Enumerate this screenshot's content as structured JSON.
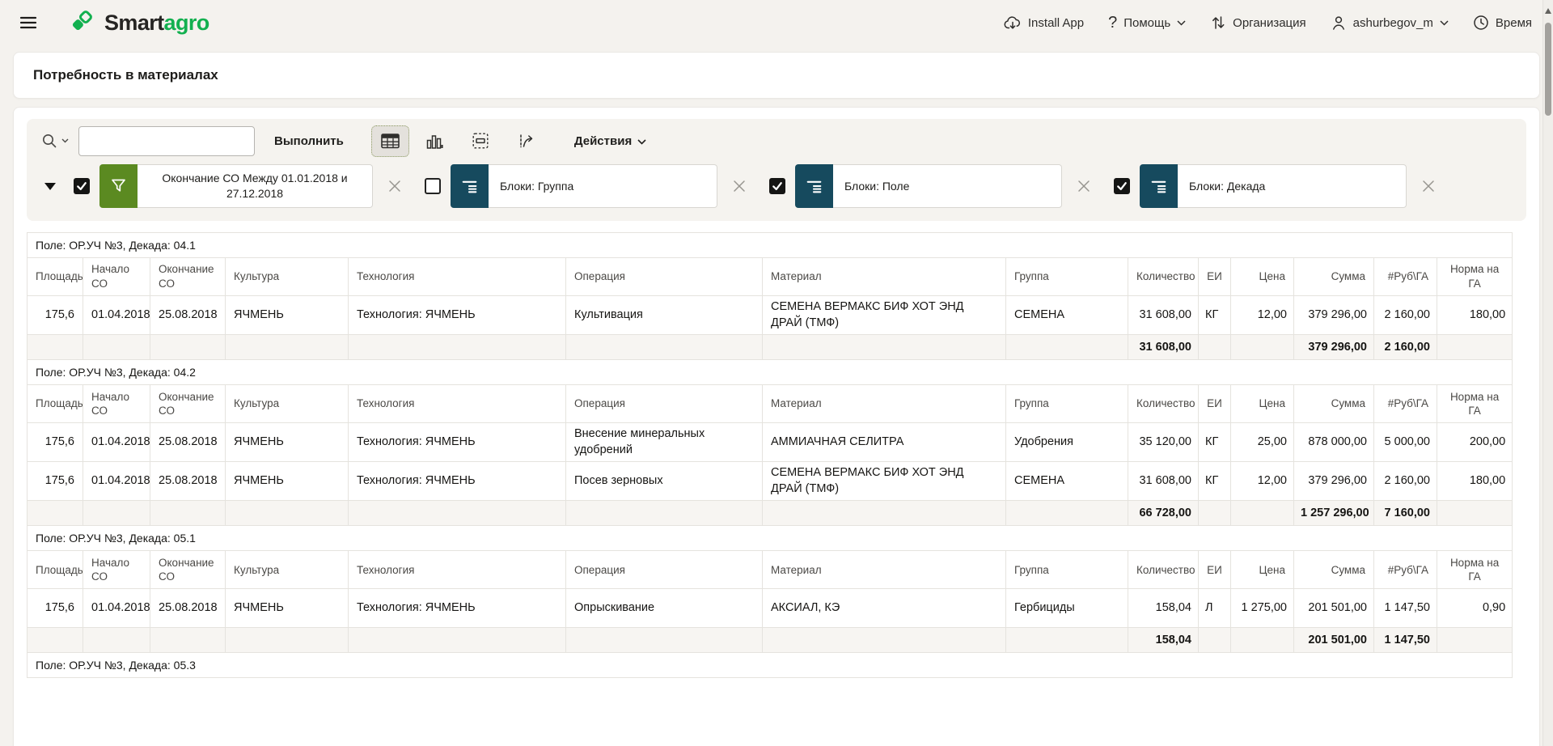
{
  "topbar": {
    "brand": {
      "smart": "Smart",
      "agro": "agro"
    },
    "nav": [
      {
        "label": "Install App",
        "icon": "cloud-download-icon",
        "chevron": false
      },
      {
        "label": "Помощь",
        "icon": "question-icon",
        "chevron": true
      },
      {
        "label": "Организация",
        "icon": "swap-arrows-icon",
        "chevron": false
      },
      {
        "label": "ashurbegov_m",
        "icon": "user-icon",
        "chevron": true
      },
      {
        "label": "Время",
        "icon": "clock-icon",
        "chevron": false
      }
    ]
  },
  "page": {
    "title": "Потребность в материалах"
  },
  "toolbar": {
    "search_value": "",
    "execute_label": "Выполнить",
    "actions_label": "Действия",
    "view_icons": [
      "table-view-icon",
      "chart-view-icon",
      "single-record-view-icon",
      "flashback-view-icon"
    ],
    "selected_view": "table-view-icon"
  },
  "filters": {
    "items": [
      {
        "checked": true,
        "type": "filter",
        "label": "Окончание СО Между 01.01.2018 и 27.12.2018"
      },
      {
        "checked": false,
        "type": "break",
        "label": "Блоки: Группа"
      },
      {
        "checked": true,
        "type": "break",
        "label": "Блоки: Поле"
      },
      {
        "checked": true,
        "type": "break",
        "label": "Блоки: Декада"
      }
    ]
  },
  "table": {
    "columns": [
      "Площадь",
      "Начало СО",
      "Окончание СО",
      "Культура",
      "Технология",
      "Операция",
      "Материал",
      "Группа",
      "Количество",
      "ЕИ",
      "Цена",
      "Сумма",
      "#Руб\\ГА",
      "Норма на ГА"
    ],
    "groups": [
      {
        "label": "Поле: ОР.УЧ №3, Декада: 04.1",
        "rows": [
          [
            "175,6",
            "01.04.2018",
            "25.08.2018",
            "ЯЧМЕНЬ",
            "Технология: ЯЧМЕНЬ",
            "Культивация",
            "СЕМЕНА ВЕРМАКС БИФ ХОТ ЭНД ДРАЙ (ТМФ)",
            "СЕМЕНА",
            "31 608,00",
            "КГ",
            "12,00",
            "379 296,00",
            "2 160,00",
            "180,00"
          ]
        ],
        "summary": [
          "",
          "",
          "",
          "",
          "",
          "",
          "",
          "",
          "31 608,00",
          "",
          "",
          "379 296,00",
          "2 160,00",
          ""
        ]
      },
      {
        "label": "Поле: ОР.УЧ №3, Декада: 04.2",
        "rows": [
          [
            "175,6",
            "01.04.2018",
            "25.08.2018",
            "ЯЧМЕНЬ",
            "Технология: ЯЧМЕНЬ",
            "Внесение минеральных удобрений",
            "АММИАЧНАЯ СЕЛИТРА",
            "Удобрения",
            "35 120,00",
            "КГ",
            "25,00",
            "878 000,00",
            "5 000,00",
            "200,00"
          ],
          [
            "175,6",
            "01.04.2018",
            "25.08.2018",
            "ЯЧМЕНЬ",
            "Технология: ЯЧМЕНЬ",
            "Посев зерновых",
            "СЕМЕНА ВЕРМАКС БИФ ХОТ ЭНД ДРАЙ (ТМФ)",
            "СЕМЕНА",
            "31 608,00",
            "КГ",
            "12,00",
            "379 296,00",
            "2 160,00",
            "180,00"
          ]
        ],
        "summary": [
          "",
          "",
          "",
          "",
          "",
          "",
          "",
          "",
          "66 728,00",
          "",
          "",
          "1 257 296,00",
          "7 160,00",
          ""
        ]
      },
      {
        "label": "Поле: ОР.УЧ №3, Декада: 05.1",
        "rows": [
          [
            "175,6",
            "01.04.2018",
            "25.08.2018",
            "ЯЧМЕНЬ",
            "Технология: ЯЧМЕНЬ",
            "Опрыскивание",
            "АКСИАЛ, КЭ",
            "Гербициды",
            "158,04",
            "Л",
            "1 275,00",
            "201 501,00",
            "1 147,50",
            "0,90"
          ]
        ],
        "summary": [
          "",
          "",
          "",
          "",
          "",
          "",
          "",
          "",
          "158,04",
          "",
          "",
          "201 501,00",
          "1 147,50",
          ""
        ]
      },
      {
        "label": "Поле: ОР.УЧ №3, Декада: 05.3",
        "rows": [],
        "summary": null
      }
    ]
  },
  "colors": {
    "brand_green": "#12b04f",
    "filter_green": "#5b8a21",
    "break_teal": "#164a5e",
    "panel_bg": "#f5f3ef"
  }
}
